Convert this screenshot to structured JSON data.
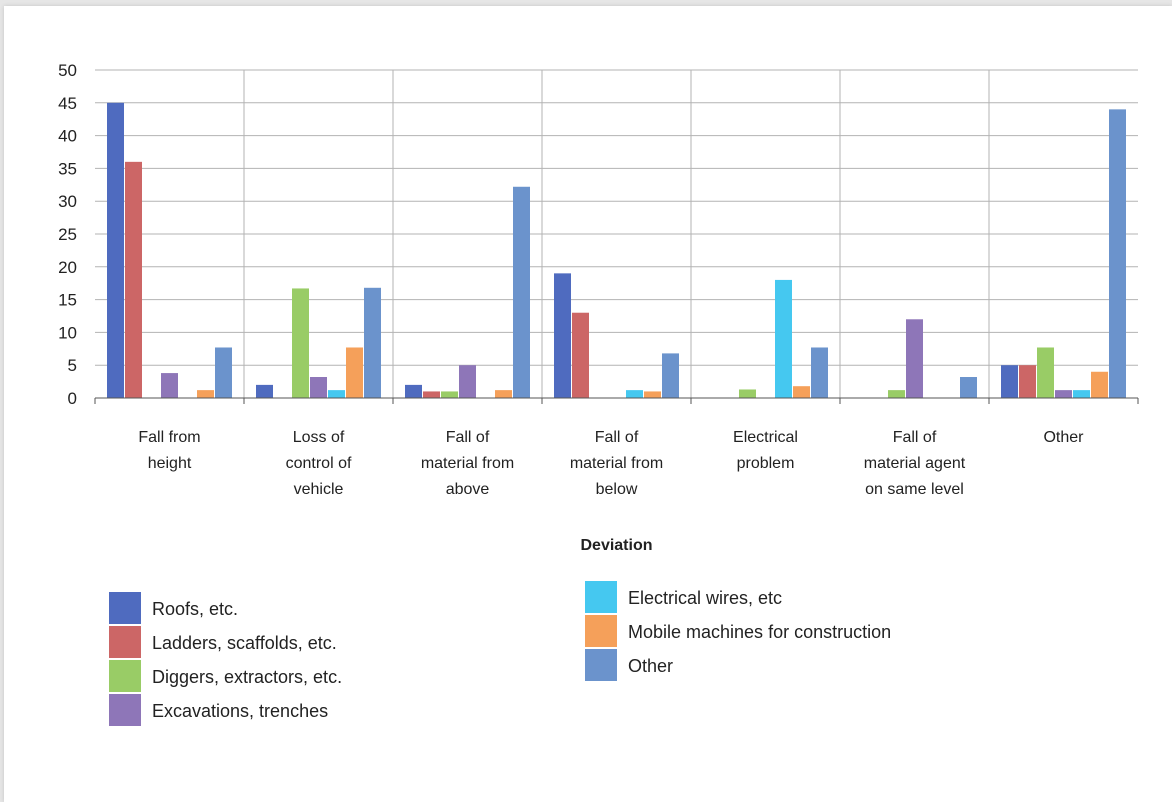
{
  "chart_data": {
    "type": "bar",
    "title": "",
    "xlabel": "Deviation",
    "ylabel": "",
    "ylim": [
      0,
      50
    ],
    "yticks": [
      0,
      5,
      10,
      15,
      20,
      25,
      30,
      35,
      40,
      45,
      50
    ],
    "grid": "vertical-category-separators",
    "legend_position": "bottom",
    "categories": [
      [
        "Fall from",
        "height"
      ],
      [
        "Loss of",
        "control of",
        "vehicle"
      ],
      [
        "Fall of",
        "material from",
        "above"
      ],
      [
        "Fall of",
        "material from",
        "below"
      ],
      [
        "Electrical",
        "problem"
      ],
      [
        "Fall of",
        "material agent",
        "on same level"
      ],
      [
        "Other"
      ]
    ],
    "series": [
      {
        "name": "Roofs, etc.",
        "color": "#4f6bbf",
        "values": [
          45,
          2,
          2,
          19,
          0,
          0,
          5
        ]
      },
      {
        "name": "Ladders, scaffolds, etc.",
        "color": "#cc6666",
        "values": [
          36,
          0,
          1,
          13,
          0,
          0,
          5
        ]
      },
      {
        "name": "Diggers, extractors, etc.",
        "color": "#99cc66",
        "values": [
          0,
          16.7,
          1,
          0,
          1.3,
          1.2,
          7.7
        ]
      },
      {
        "name": "Excavations, trenches",
        "color": "#8e76b8",
        "values": [
          3.8,
          3.2,
          5,
          0,
          0,
          12,
          1.2
        ]
      },
      {
        "name": "Electrical wires, etc",
        "color": "#45c8f0",
        "values": [
          0,
          1.2,
          0,
          1.2,
          18,
          0,
          1.2
        ]
      },
      {
        "name": "Mobile machines for construction",
        "color": "#f5a05a",
        "values": [
          1.2,
          7.7,
          1.2,
          1,
          1.8,
          0,
          4
        ]
      },
      {
        "name": "Other",
        "color": "#6b93cc",
        "values": [
          7.7,
          16.8,
          32.2,
          6.8,
          7.7,
          3.2,
          44
        ]
      }
    ]
  }
}
